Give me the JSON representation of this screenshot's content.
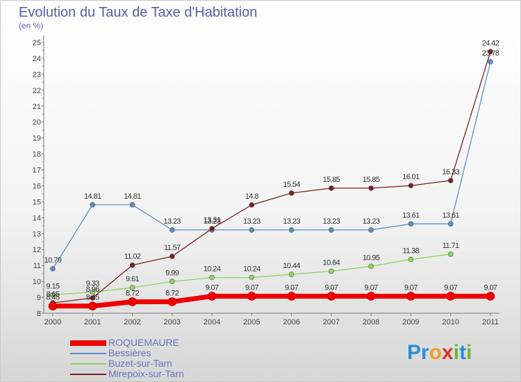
{
  "title": "Evolution du Taux de Taxe d'Habitation",
  "subtitle": "(en %)",
  "logo": {
    "letters": [
      "P",
      "r",
      "o",
      "x",
      "i",
      "t",
      "i"
    ],
    "colors": [
      "#2a8fd4",
      "#2a8fd4",
      "#f0a020",
      "#d13a2a",
      "#6bb82a",
      "#2a8fd4",
      "#6bb82a"
    ]
  },
  "chart_data": {
    "type": "line",
    "x": [
      "2000",
      "2001",
      "2002",
      "2003",
      "2004",
      "2005",
      "2006",
      "2007",
      "2008",
      "2009",
      "2010",
      "2011"
    ],
    "ylim": [
      8,
      25
    ],
    "yticks": [
      "8",
      "9",
      "10",
      "11",
      "12",
      "13",
      "14",
      "15",
      "16",
      "17",
      "18",
      "19",
      "20",
      "21",
      "22",
      "23",
      "24",
      "25"
    ],
    "grid": false,
    "legend_position": "bottom-left",
    "series": [
      {
        "name": "Bessières",
        "color": "#5b8fc4",
        "values": [
          10.79,
          14.81,
          14.81,
          13.23,
          13.23,
          13.23,
          13.23,
          13.23,
          13.23,
          13.61,
          13.61,
          23.78
        ],
        "labels": [
          "10.79",
          "14.81",
          "14.81",
          "13.23",
          "13.23",
          "13.23",
          "13.23",
          "13.23",
          "13.23",
          "13.61",
          "13.61",
          "23.78"
        ]
      },
      {
        "name": "Buzet-sur-Tarn",
        "color": "#8fd45a",
        "values": [
          9.15,
          9.33,
          9.61,
          9.99,
          10.24,
          10.24,
          10.44,
          10.64,
          10.95,
          11.38,
          11.71,
          null
        ],
        "labels": [
          "9.15",
          "9.33",
          "9.61",
          "9.99",
          "10.24",
          "10.24",
          "10.44",
          "10.64",
          "10.95",
          "11.38",
          "11.71",
          ""
        ]
      },
      {
        "name": "Mirepoix-sur-Tarn",
        "color": "#7a2020",
        "values": [
          8.65,
          8.96,
          11.02,
          11.57,
          13.31,
          14.8,
          15.54,
          15.85,
          15.85,
          16.01,
          16.33,
          24.42
        ],
        "labels": [
          "8.65",
          "8.96",
          "11.02",
          "11.57",
          "13.31",
          "14.8",
          "15.54",
          "15.85",
          "15.85",
          "16.01",
          "16.33",
          "24.42"
        ]
      },
      {
        "name": "ROQUEMAURE",
        "color": "#ee0000",
        "values": [
          8.45,
          8.45,
          8.72,
          8.72,
          9.07,
          9.07,
          9.07,
          9.07,
          9.07,
          9.07,
          9.07,
          9.07
        ],
        "labels": [
          "8.45",
          "8.45",
          "8.72",
          "8.72",
          "9.07",
          "9.07",
          "9.07",
          "9.07",
          "9.07",
          "9.07",
          "9.07",
          "9.07"
        ]
      }
    ],
    "legend": [
      "ROQUEMAURE",
      "Bessières",
      "Buzet-sur-Tarn",
      "Mirepoix-sur-Tarn"
    ]
  }
}
